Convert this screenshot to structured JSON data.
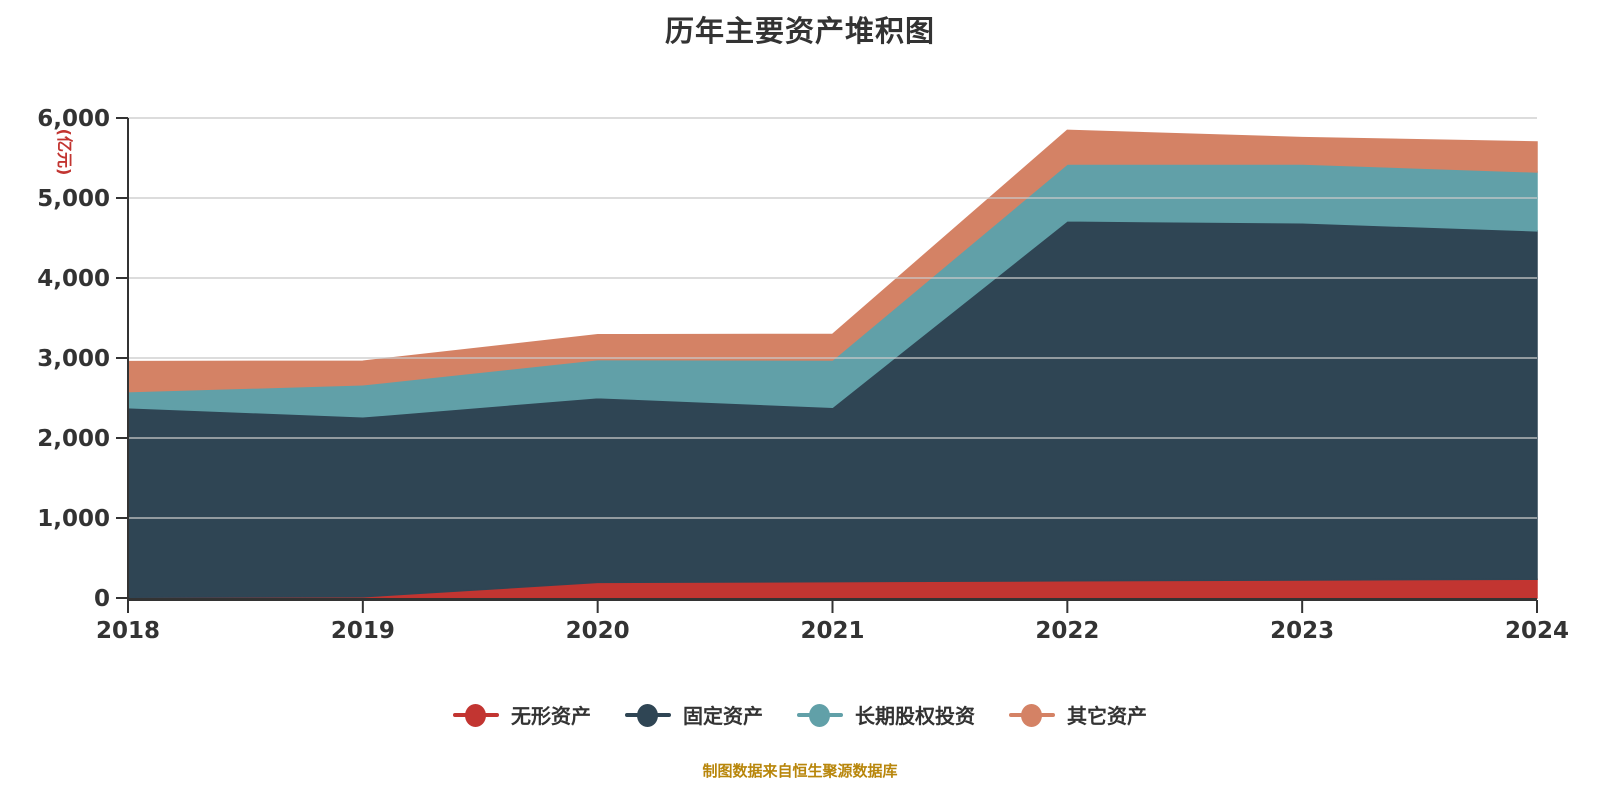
{
  "title": "历年主要资产堆积图",
  "caption": "制图数据来自恒生聚源数据库",
  "y_axis": {
    "name": "(亿元)",
    "tick_labels": [
      "0",
      "1,000",
      "2,000",
      "3,000",
      "4,000",
      "5,000",
      "6,000"
    ],
    "min": 0,
    "max": 6000,
    "interval": 1000
  },
  "x_axis": {
    "tick_labels": [
      "2018",
      "2019",
      "2020",
      "2021",
      "2022",
      "2023",
      "2024"
    ]
  },
  "legend": [
    {
      "label": "无形资产",
      "color": "#c23531"
    },
    {
      "label": "固定资产",
      "color": "#2f4554"
    },
    {
      "label": "长期股权投资",
      "color": "#61a0a8"
    },
    {
      "label": "其它资产",
      "color": "#d48265"
    }
  ],
  "colors": {
    "axis": "#333333",
    "gridline": "#c9c9c9",
    "title_text": "#333333",
    "axis_name_text": "#c23531",
    "caption_text": "#b8860b",
    "background": "#ffffff"
  },
  "chart_data": {
    "type": "area",
    "stacked": true,
    "title": "历年主要资产堆积图",
    "x": [
      2018,
      2019,
      2020,
      2021,
      2022,
      2023,
      2024
    ],
    "series": [
      {
        "name": "无形资产",
        "color": "#c23531",
        "values": [
          10,
          15,
          195,
          205,
          215,
          225,
          235
        ]
      },
      {
        "name": "固定资产",
        "color": "#2f4554",
        "values": [
          2370,
          2250,
          2310,
          2180,
          4500,
          4465,
          4355
        ]
      },
      {
        "name": "长期股权投资",
        "color": "#61a0a8",
        "values": [
          200,
          400,
          475,
          590,
          710,
          735,
          735
        ]
      },
      {
        "name": "其它资产",
        "color": "#d48265",
        "values": [
          375,
          295,
          310,
          320,
          420,
          330,
          375
        ]
      }
    ],
    "totals": [
      2955,
      2960,
      3290,
      3295,
      5845,
      5755,
      5700
    ],
    "ylabel": "(亿元)",
    "ylim": [
      0,
      6000
    ],
    "grid": true,
    "legend_position": "bottom"
  }
}
